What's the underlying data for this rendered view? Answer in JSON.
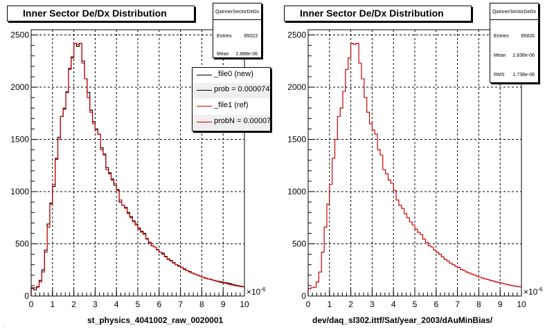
{
  "colors": {
    "new": "#000000",
    "ref": "#cc0000",
    "frame": "#000000"
  },
  "left": {
    "title": "Inner Sector De/Dx Distribution",
    "stats": {
      "name": "QaInnerSectorDeDx",
      "rows": [
        {
          "label": "Entries",
          "value": "85023"
        },
        {
          "label": "Mean",
          "value": "2.888e-06"
        }
      ]
    },
    "legend": [
      {
        "label": "_file0 (new)",
        "color": "#000000"
      },
      {
        "label": "prob = 0.000074",
        "color": "#000000"
      },
      {
        "label": "_file1 (ref)",
        "color": "#cc0000"
      },
      {
        "label": "probN = 0.00007",
        "color": "#cc0000"
      }
    ],
    "xtitle": "st_physics_4041002_raw_0020001",
    "footer": "..."
  },
  "right": {
    "title": "Inner Sector De/Dx Distribution",
    "stats": {
      "name": "QaInnerSectorDeDx",
      "rows": [
        {
          "label": "Entries",
          "value": "85826"
        },
        {
          "label": "Mean",
          "value": "2.836e-06"
        },
        {
          "label": "RMS",
          "value": "1.738e-06"
        }
      ]
    },
    "xtitle": "dev/daq_sl302.ittf/Sat/year_2003/dAuMinBias/"
  },
  "chart_data": [
    {
      "type": "histogram",
      "title": "Inner Sector De/Dx Distribution",
      "xlabel": "st_physics_4041002_raw_0020001",
      "x_multiplier": "×10^-6",
      "xlim": [
        0,
        10
      ],
      "ylim": [
        0,
        2550
      ],
      "bin_width": 0.125,
      "xticks": [
        0,
        1,
        2,
        3,
        4,
        5,
        6,
        7,
        8,
        9,
        10
      ],
      "yticks": [
        0,
        500,
        1000,
        1500,
        2000,
        2500
      ],
      "grid": true,
      "legend_position": "top-right",
      "series": [
        {
          "name": "_file0 (new)",
          "color": "#000000",
          "values": [
            80,
            60,
            90,
            150,
            250,
            440,
            690,
            890,
            1050,
            1310,
            1520,
            1720,
            1790,
            1950,
            2180,
            2290,
            2420,
            2390,
            2420,
            2250,
            2080,
            1950,
            1780,
            1670,
            1600,
            1550,
            1420,
            1360,
            1230,
            1180,
            1120,
            1060,
            1020,
            900,
            870,
            850,
            800,
            760,
            720,
            690,
            650,
            620,
            600,
            550,
            510,
            480,
            470,
            445,
            420,
            410,
            380,
            355,
            340,
            320,
            300,
            290,
            275,
            260,
            245,
            235,
            220,
            210,
            200,
            190,
            180,
            170,
            165,
            160,
            150,
            145,
            140,
            135,
            130,
            125,
            120,
            112,
            105,
            100,
            95,
            90
          ]
        },
        {
          "name": "_file1 (ref)",
          "color": "#cc0000",
          "values": [
            70,
            80,
            85,
            135,
            230,
            420,
            660,
            880,
            1070,
            1320,
            1500,
            1720,
            1800,
            1960,
            2170,
            2280,
            2420,
            2410,
            2420,
            2230,
            2080,
            1900,
            1760,
            1650,
            1590,
            1550,
            1400,
            1350,
            1210,
            1170,
            1110,
            1080,
            1010,
            920,
            870,
            840,
            790,
            750,
            710,
            680,
            640,
            610,
            590,
            545,
            515,
            480,
            470,
            440,
            420,
            400,
            375,
            350,
            335,
            315,
            300,
            285,
            275,
            255,
            245,
            230,
            220,
            210,
            200,
            190,
            180,
            172,
            165,
            158,
            150,
            143,
            136,
            130,
            125,
            118,
            112,
            106,
            100,
            96,
            92,
            88
          ]
        }
      ]
    },
    {
      "type": "histogram",
      "title": "Inner Sector De/Dx Distribution",
      "xlabel": "dev/daq_sl302.ittf/Sat/year_2003/dAuMinBias/",
      "x_multiplier": "×10^-6",
      "xlim": [
        0,
        10
      ],
      "ylim": [
        0,
        2550
      ],
      "bin_width": 0.125,
      "xticks": [
        0,
        1,
        2,
        3,
        4,
        5,
        6,
        7,
        8,
        9,
        10
      ],
      "yticks": [
        0,
        500,
        1000,
        1500,
        2000,
        2500
      ],
      "grid": true,
      "series": [
        {
          "name": "",
          "color": "#cc0000",
          "values": [
            70,
            80,
            85,
            135,
            230,
            420,
            660,
            880,
            1070,
            1320,
            1500,
            1720,
            1800,
            1960,
            2170,
            2280,
            2420,
            2410,
            2420,
            2230,
            2080,
            1900,
            1760,
            1650,
            1590,
            1550,
            1400,
            1350,
            1210,
            1170,
            1110,
            1080,
            1010,
            920,
            870,
            840,
            790,
            750,
            710,
            680,
            640,
            610,
            590,
            545,
            515,
            480,
            470,
            440,
            420,
            400,
            375,
            350,
            335,
            315,
            300,
            285,
            275,
            255,
            245,
            230,
            220,
            210,
            200,
            190,
            180,
            172,
            165,
            158,
            150,
            143,
            136,
            130,
            125,
            118,
            112,
            106,
            100,
            96,
            92,
            88
          ]
        }
      ]
    }
  ]
}
